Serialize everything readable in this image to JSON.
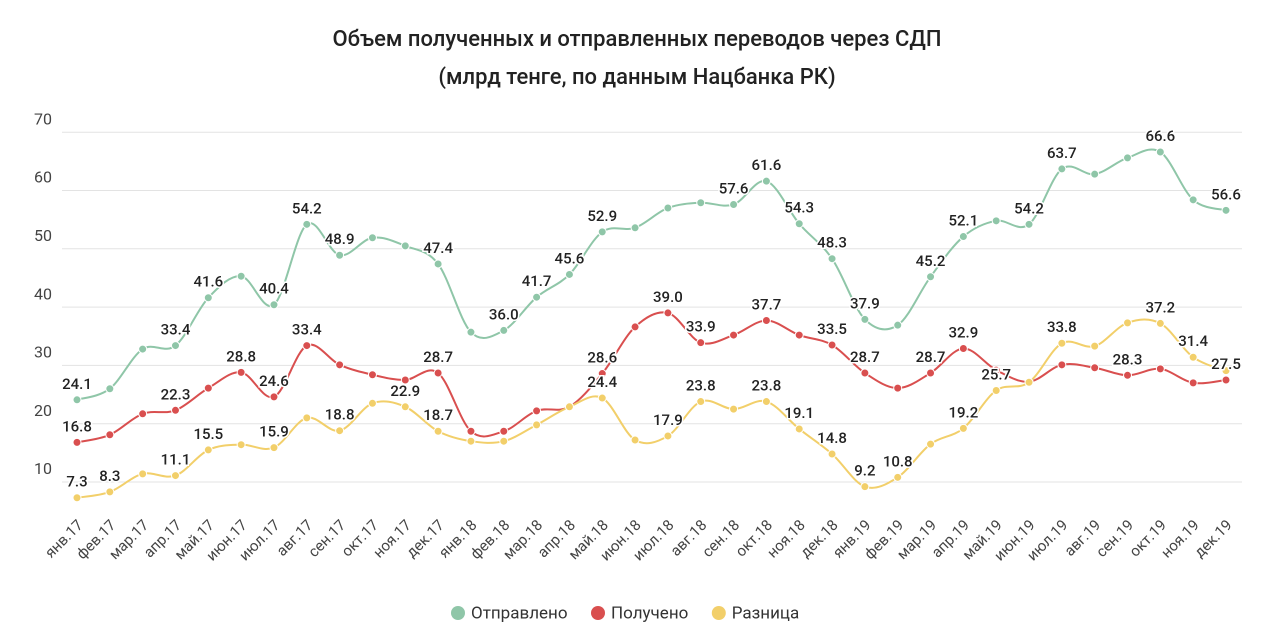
{
  "chart_data": {
    "type": "line",
    "title": "Объем полученных и отправленных переводов через СДП",
    "subtitle": "(млрд тенге, по данным Нацбанка РК)",
    "categories": [
      "янв.17",
      "фев.17",
      "мар.17",
      "апр.17",
      "май.17",
      "июн.17",
      "июл.17",
      "авг.17",
      "сен.17",
      "окт.17",
      "ноя.17",
      "дек.17",
      "янв.18",
      "фев.18",
      "мар.18",
      "апр.18",
      "май.18",
      "июн.18",
      "июл.18",
      "авг.18",
      "сен.18",
      "окт.18",
      "ноя.18",
      "дек.18",
      "янв.19",
      "фев.19",
      "мар.19",
      "апр.19",
      "май.19",
      "июн.19",
      "июл.19",
      "авг.19",
      "сен.19",
      "окт.19",
      "ноя.19",
      "дек.19"
    ],
    "series": [
      {
        "name": "Отправлено",
        "color": "#8fc6a8",
        "values": [
          24.1,
          26.0,
          32.8,
          33.4,
          41.6,
          45.3,
          40.4,
          54.2,
          48.9,
          51.9,
          50.5,
          47.4,
          35.7,
          36.0,
          41.7,
          45.6,
          52.9,
          53.6,
          57.0,
          57.9,
          57.6,
          61.6,
          54.3,
          48.3,
          37.9,
          36.9,
          45.2,
          52.1,
          54.8,
          54.2,
          63.7,
          62.8,
          65.6,
          66.6,
          58.4,
          56.6
        ],
        "value_labels": [
          "24.1",
          null,
          null,
          "33.4",
          "41.6",
          null,
          "40.4",
          "54.2",
          "48.9",
          null,
          null,
          "47.4",
          null,
          "36.0",
          "41.7",
          "45.6",
          "52.9",
          null,
          null,
          null,
          "57.6",
          "61.6",
          "54.3",
          "48.3",
          "37.9",
          null,
          "45.2",
          "52.1",
          null,
          "54.2",
          "63.7",
          null,
          null,
          "66.6",
          null,
          "56.6"
        ]
      },
      {
        "name": "Получено",
        "color": "#d94f4f",
        "values": [
          16.8,
          18.1,
          21.7,
          22.3,
          26.1,
          28.8,
          24.6,
          33.4,
          30.1,
          28.4,
          27.5,
          28.7,
          18.7,
          18.7,
          22.2,
          22.9,
          28.6,
          36.6,
          39.0,
          33.9,
          35.2,
          37.7,
          35.2,
          33.5,
          28.7,
          26.1,
          28.7,
          32.9,
          29.2,
          27.2,
          30.1,
          29.6,
          28.3,
          29.4,
          27.0,
          27.5
        ],
        "value_labels": [
          "16.8",
          null,
          null,
          "22.3",
          null,
          "28.8",
          "24.6",
          "33.4",
          null,
          null,
          null,
          "28.7",
          null,
          null,
          null,
          null,
          "28.6",
          null,
          "39.0",
          "33.9",
          null,
          "37.7",
          null,
          "33.5",
          "28.7",
          null,
          "28.7",
          "32.9",
          null,
          null,
          null,
          null,
          "28.3",
          null,
          null,
          "27.5"
        ]
      },
      {
        "name": "Разница",
        "color": "#f2cf6a",
        "values": [
          7.3,
          8.3,
          11.4,
          11.1,
          15.5,
          16.4,
          15.9,
          21.0,
          18.8,
          23.5,
          22.9,
          18.7,
          17.0,
          17.0,
          19.8,
          22.9,
          24.4,
          17.2,
          17.9,
          23.8,
          22.5,
          23.8,
          19.1,
          14.8,
          9.2,
          10.8,
          16.5,
          19.2,
          25.7,
          27.1,
          33.8,
          33.3,
          37.3,
          37.2,
          31.4,
          29.1
        ],
        "value_labels": [
          "7.3",
          "8.3",
          null,
          "11.1",
          "15.5",
          null,
          "15.9",
          null,
          "18.8",
          null,
          "22.9",
          "18.7",
          null,
          null,
          null,
          null,
          "24.4",
          null,
          "17.9",
          "23.8",
          null,
          "23.8",
          "19.1",
          "14.8",
          "9.2",
          "10.8",
          null,
          "19.2",
          "25.7",
          null,
          "33.8",
          null,
          null,
          "37.2",
          "31.4",
          null
        ]
      }
    ],
    "ylim": [
      5,
      72
    ],
    "yticks": [
      10,
      20,
      30,
      40,
      50,
      60,
      70
    ],
    "grid": true,
    "legend": "bottom"
  }
}
